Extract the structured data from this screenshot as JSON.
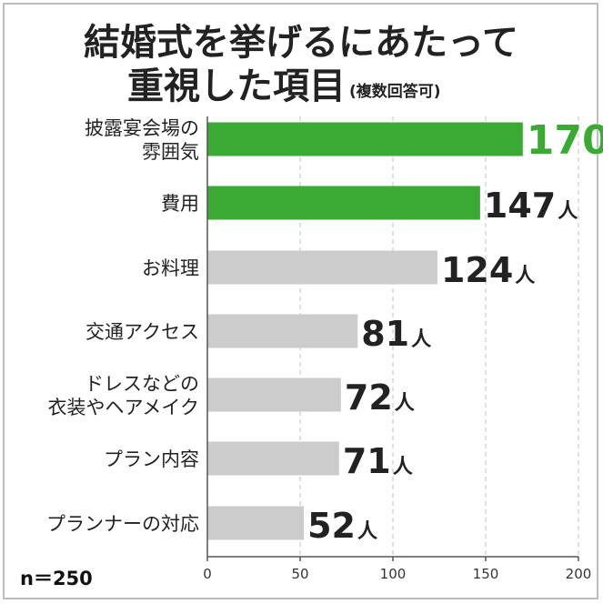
{
  "chart_data": {
    "type": "bar",
    "orientation": "horizontal",
    "title_line1": "結婚式を挙げるにあたって",
    "title_line2": "重視した項目",
    "title_note": "(複数回答可)",
    "sample_size": "n＝250",
    "unit": "人",
    "categories": [
      [
        "披露宴会場の",
        "雰囲気"
      ],
      [
        "費用"
      ],
      [
        "お料理"
      ],
      [
        "交通アクセス"
      ],
      [
        "ドレスなどの",
        "衣装やヘアメイク"
      ],
      [
        "プラン内容"
      ],
      [
        "プランナーの対応"
      ]
    ],
    "values": [
      170,
      147,
      124,
      81,
      72,
      71,
      52
    ],
    "highlight": [
      true,
      true,
      false,
      false,
      false,
      false,
      false
    ],
    "xlim": [
      0,
      200
    ],
    "xticks": [
      0,
      50,
      100,
      150,
      200
    ],
    "grid": true,
    "colors": {
      "highlight_bar": "#3aaa35",
      "normal_bar": "#cccccc",
      "top_value_text": "#3aaa35",
      "value_text": "#222222",
      "grid": "#cccccc",
      "axis": "#555555"
    }
  }
}
